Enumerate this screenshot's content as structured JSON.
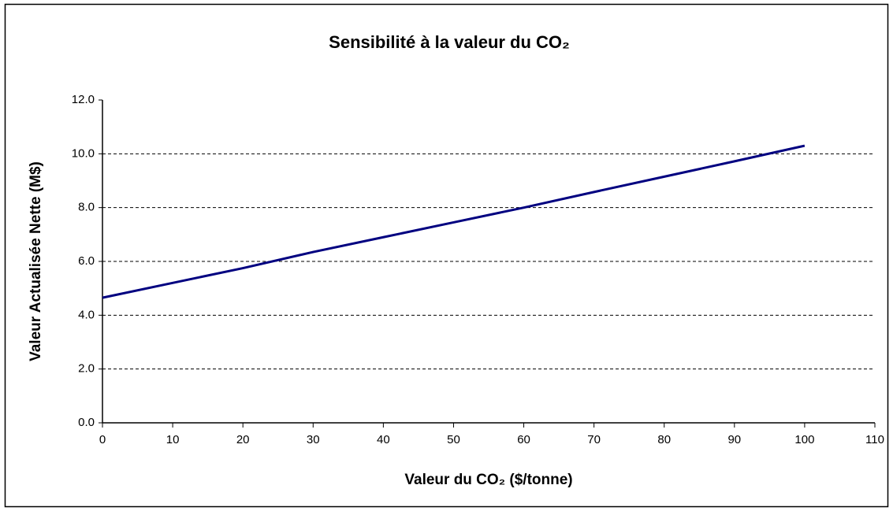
{
  "chart_data": {
    "type": "line",
    "title": "Sensibilité à la valeur du CO₂",
    "x_label": "Valeur du CO₂ ($/tonne)",
    "y_label": "Valeur Actualisée Nette (M$)",
    "x": [
      0,
      10,
      20,
      30,
      40,
      50,
      60,
      70,
      80,
      90,
      100
    ],
    "values": [
      4.65,
      5.2,
      5.75,
      6.35,
      6.9,
      7.45,
      8.0,
      8.58,
      9.15,
      9.72,
      10.3
    ],
    "color": "#000080",
    "xlim": [
      0,
      110
    ],
    "xticks": [
      0,
      10,
      20,
      30,
      40,
      50,
      60,
      70,
      80,
      90,
      100,
      110
    ],
    "ylim": [
      0,
      12
    ],
    "yticks": [
      {
        "value": 0,
        "label": "0.0"
      },
      {
        "value": 2,
        "label": "2.0"
      },
      {
        "value": 4,
        "label": "4.0"
      },
      {
        "value": 6,
        "label": "6.0"
      },
      {
        "value": 8,
        "label": "8.0"
      },
      {
        "value": 10,
        "label": "10.0"
      },
      {
        "value": 12,
        "label": "12.0"
      }
    ],
    "grid": true
  }
}
